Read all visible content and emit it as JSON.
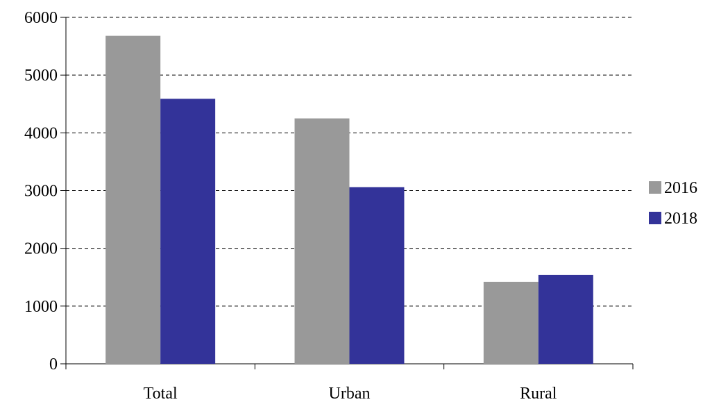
{
  "chart_data": {
    "type": "bar",
    "categories": [
      "Total",
      "Urban",
      "Rural"
    ],
    "series": [
      {
        "name": "2016",
        "values": [
          5680,
          4250,
          1420
        ],
        "color": "#999999"
      },
      {
        "name": "2018",
        "values": [
          4590,
          3060,
          1540
        ],
        "color": "#333399"
      }
    ],
    "y_ticks": [
      "0",
      "1000",
      "2000",
      "3000",
      "4000",
      "5000",
      "6000"
    ],
    "ylim": [
      0,
      6000
    ],
    "title": "",
    "xlabel": "",
    "ylabel": "",
    "grid": "horizontal-dashed",
    "legend": "right"
  }
}
